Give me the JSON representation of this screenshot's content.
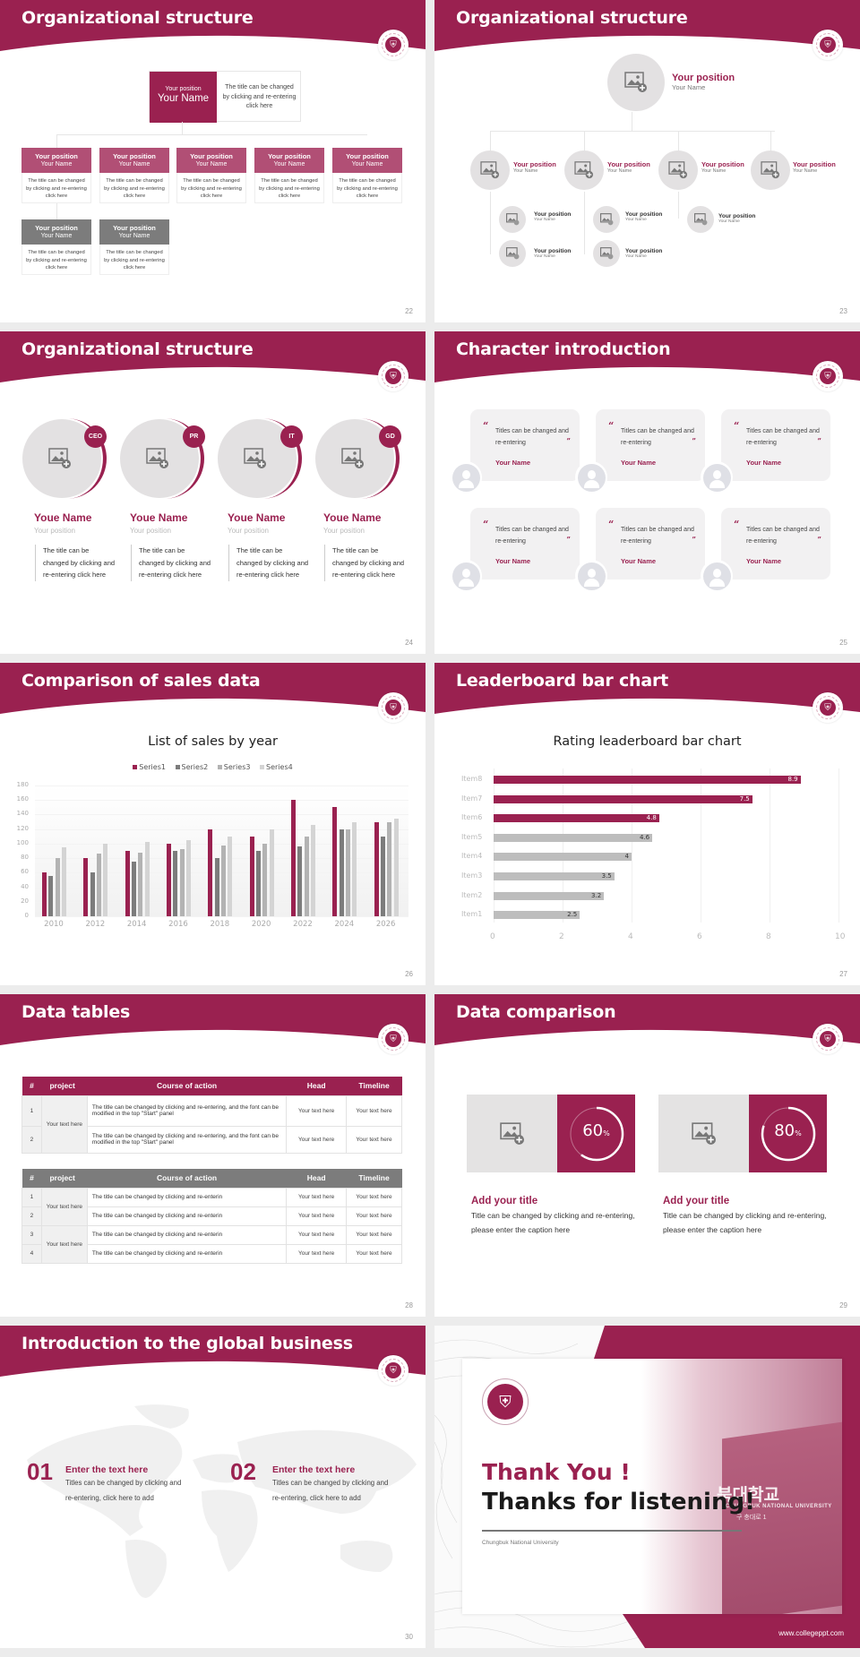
{
  "theme": {
    "accent": "#9a2150",
    "accent_light": "#b14f75",
    "gray_dark": "#7c7c7c",
    "gray_mid": "#b3b3b3",
    "gray_light": "#d4d4d4",
    "placeholder_bg": "#e3e1e2"
  },
  "slides": {
    "s22": {
      "title": "Organizational structure",
      "page": "22",
      "top": {
        "position": "Your position",
        "name": "Your Name",
        "desc": "The title can be changed by clicking and re-entering click here"
      },
      "cards": [
        {
          "position": "Your position",
          "name": "Your Name",
          "desc": "The title can be changed by clicking and re-entering click here"
        },
        {
          "position": "Your position",
          "name": "Your Name",
          "desc": "The title can be changed by clicking and re-entering click here"
        },
        {
          "position": "Your position",
          "name": "Your Name",
          "desc": "The title can be changed by clicking and re-entering click here"
        },
        {
          "position": "Your position",
          "name": "Your Name",
          "desc": "The title can be changed by clicking and re-entering click here"
        },
        {
          "position": "Your position",
          "name": "Your Name",
          "desc": "The title can be changed by clicking and re-entering click here"
        },
        {
          "position": "Your position",
          "name": "Your Name",
          "desc": "The title can be changed by clicking and re-entering click here"
        },
        {
          "position": "Your position",
          "name": "Your Name",
          "desc": "The title can be changed by clicking and re-entering click here"
        }
      ]
    },
    "s23": {
      "title": "Organizational structure",
      "page": "23",
      "top": {
        "position": "Your position",
        "name": "Your Name"
      },
      "level2": [
        {
          "position": "Your position",
          "name": "Your Name"
        },
        {
          "position": "Your position",
          "name": "Your Name"
        },
        {
          "position": "Your position",
          "name": "Your Name"
        },
        {
          "position": "Your position",
          "name": "Your Name"
        }
      ],
      "level3": [
        {
          "position": "Your position",
          "name": "Your Name"
        },
        {
          "position": "Your position",
          "name": "Your Name"
        },
        {
          "position": "Your position",
          "name": "Your Name"
        },
        {
          "position": "Your position",
          "name": "Your Name"
        },
        {
          "position": "Your position",
          "name": "Your Name"
        }
      ]
    },
    "s24": {
      "title": "Organizational structure",
      "page": "24",
      "people": [
        {
          "badge": "CEO",
          "name": "Youe Name",
          "position": "Your position",
          "desc": "The title can be changed by clicking and re-entering click here"
        },
        {
          "badge": "PR",
          "name": "Youe Name",
          "position": "Your position",
          "desc": "The title can be changed by clicking and re-entering click here"
        },
        {
          "badge": "IT",
          "name": "Youe Name",
          "position": "Your position",
          "desc": "The title can be changed by clicking and re-entering click here"
        },
        {
          "badge": "GD",
          "name": "Youe Name",
          "position": "Your position",
          "desc": "The title can be changed by clicking and re-entering click here"
        }
      ]
    },
    "s25": {
      "title": "Character introduction",
      "page": "25",
      "open_quote": "“",
      "close_quote": "”",
      "cards": [
        {
          "text": "Titles can be changed and re-entering",
          "name": "Your Name"
        },
        {
          "text": "Titles can be changed and re-entering",
          "name": "Your Name"
        },
        {
          "text": "Titles can be changed and re-entering",
          "name": "Your Name"
        },
        {
          "text": "Titles can be changed and re-entering",
          "name": "Your Name"
        },
        {
          "text": "Titles can be changed and re-entering",
          "name": "Your Name"
        },
        {
          "text": "Titles can be changed and re-entering",
          "name": "Your Name"
        }
      ]
    },
    "s26": {
      "title": "Comparison of sales data",
      "page": "26"
    },
    "s27": {
      "title": "Leaderboard bar chart",
      "page": "27"
    },
    "s28": {
      "title": "Data tables",
      "page": "28",
      "headers": [
        "#",
        "project",
        "Course of action",
        "Head",
        "Timeline"
      ],
      "table1": {
        "group": "Your text here",
        "rows": [
          {
            "num": "1",
            "action": "The title can be changed by clicking and re-entering, and the font can be modified in the top \"Start\" panel",
            "head": "Your text here",
            "timeline": "Your text here"
          },
          {
            "num": "2",
            "action": "The title can be changed by clicking and re-entering, and the font can be modified in the top \"Start\" panel",
            "head": "Your text here",
            "timeline": "Your text here"
          }
        ]
      },
      "table2": {
        "groups": [
          "Your text here",
          "Your text here"
        ],
        "rows": [
          {
            "num": "1",
            "action": "The title can be changed by clicking and re-enterin",
            "head": "Your text here",
            "timeline": "Your text here"
          },
          {
            "num": "2",
            "action": "The title can be changed by clicking and re-enterin",
            "head": "Your text here",
            "timeline": "Your text here"
          },
          {
            "num": "3",
            "action": "The title can be changed by clicking and re-enterin",
            "head": "Your text here",
            "timeline": "Your text here"
          },
          {
            "num": "4",
            "action": "The title can be changed by clicking and re-enterin",
            "head": "Your text here",
            "timeline": "Your text here"
          }
        ]
      }
    },
    "s29": {
      "title": "Data comparison",
      "page": "29",
      "items": [
        {
          "value": "60",
          "unit": "%",
          "progress": 60,
          "title": "Add your title",
          "desc": "Title can be changed by clicking and re-entering, please enter the caption here"
        },
        {
          "value": "80",
          "unit": "%",
          "progress": 80,
          "title": "Add your title",
          "desc": "Title can be changed by clicking and re-entering, please enter the caption here"
        }
      ]
    },
    "s30": {
      "title": "Introduction to the global business",
      "page": "30",
      "items": [
        {
          "num": "01",
          "title": "Enter the text here",
          "desc": "Titles can be changed by clicking and re-entering, click here to add"
        },
        {
          "num": "02",
          "title": "Enter the text here",
          "desc": "Titles can be changed by clicking and re-entering, click here to add"
        }
      ]
    },
    "s31": {
      "line1": "Thank You !",
      "line2": "Thanks for listening!",
      "university": "Chungbuk National University",
      "url": "www.collegeppt.com",
      "sign_korean": "북대학교",
      "sign_english": "CHUNGBUK NATIONAL UNIVERSITY",
      "sign_address": "구 충대로 1"
    }
  },
  "chart_data": [
    {
      "type": "bar",
      "title": "List of sales by year",
      "categories": [
        "2010",
        "2012",
        "2014",
        "2016",
        "2018",
        "2020",
        "2022",
        "2024",
        "2026"
      ],
      "series": [
        {
          "name": "Series1",
          "color": "#9a2150",
          "values": [
            60,
            80,
            90,
            100,
            120,
            110,
            160,
            150,
            130
          ]
        },
        {
          "name": "Series2",
          "color": "#7c7c7c",
          "values": [
            55,
            60,
            75,
            90,
            80,
            90,
            96,
            120,
            110
          ]
        },
        {
          "name": "Series3",
          "color": "#b3b3b3",
          "values": [
            80,
            86,
            88,
            92,
            98,
            100,
            110,
            120,
            130
          ]
        },
        {
          "name": "Series4",
          "color": "#d4d4d4",
          "values": [
            95,
            100,
            102,
            105,
            110,
            120,
            126,
            130,
            135
          ]
        }
      ],
      "xlabel": "",
      "ylabel": "",
      "yticks": [
        0,
        20,
        40,
        60,
        80,
        100,
        120,
        140,
        160,
        180
      ],
      "ylim": [
        0,
        180
      ],
      "legend_position": "top",
      "grid": true
    },
    {
      "type": "bar",
      "orientation": "horizontal",
      "title": "Rating leaderboard bar chart",
      "categories": [
        "Item8",
        "Item7",
        "Item6",
        "Item5",
        "Item4",
        "Item3",
        "Item2",
        "Item1"
      ],
      "values": [
        8.9,
        7.5,
        4.8,
        4.6,
        4,
        3.5,
        3.2,
        2.5
      ],
      "labels": [
        "8.9",
        "7.5",
        "4.8",
        "4.6",
        "4",
        "3.5",
        "3.2",
        "2.5"
      ],
      "highlight_top": 3,
      "xticks": [
        0,
        2,
        4,
        6,
        8,
        10
      ],
      "xlim": [
        0,
        10
      ],
      "xlabel": "",
      "ylabel": "",
      "grid": true
    }
  ]
}
